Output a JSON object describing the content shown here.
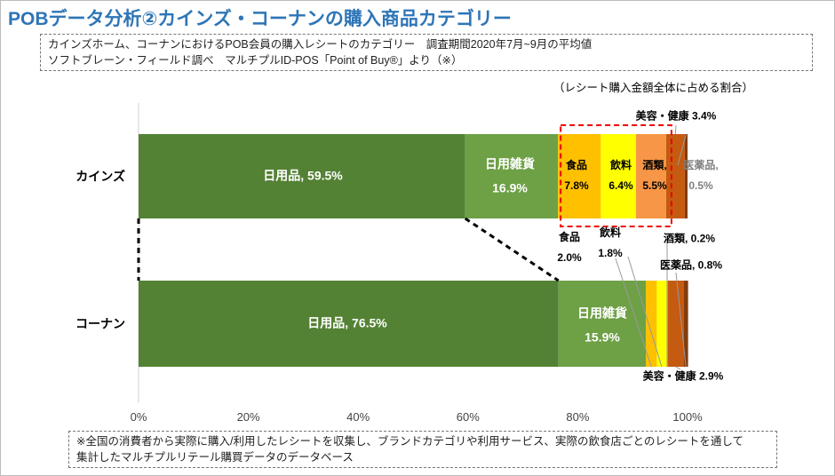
{
  "header": {
    "title": "POBデータ分析②カインズ・コーナンの購入商品カテゴリー",
    "lines": [
      "カインズホーム、コーナンにおけるPOB会員の購入レシートのカテゴリー　調査期間2020年7月~9月の平均値",
      "ソフトブレーン・フィールド調べ　マルチプルID-POS「Point of Buy®」より（※）"
    ]
  },
  "chart_data": {
    "type": "bar",
    "orientation": "horizontal",
    "stacked": true,
    "note": "（レシート購入金額全体に占める割合）",
    "categories": [
      "カインズ",
      "コーナン"
    ],
    "series": [
      {
        "color": "#548235",
        "values": [
          59.5,
          76.5
        ],
        "value_labels": [
          "日用品, 59.5%",
          "日用品, 76.5%"
        ]
      },
      {
        "color": "#6ea046",
        "values": [
          16.9,
          15.9
        ],
        "value_labels": [
          "日用雑貨\n16.9%",
          "日用雑貨\n15.9%"
        ]
      },
      {
        "color": "#ffc000",
        "values": [
          7.8,
          2.0
        ],
        "value_labels": [
          "食品\n7.8%",
          "食品\n2.0%"
        ]
      },
      {
        "color": "#ffff00",
        "values": [
          6.4,
          1.8
        ],
        "value_labels": [
          "飲料\n6.4%",
          "飲料\n1.8%"
        ]
      },
      {
        "color": "#f79646",
        "values": [
          5.5,
          0.2
        ],
        "value_labels": [
          "酒類,\n5.5%",
          "酒類, 0.2%"
        ]
      },
      {
        "color": "#c55a11",
        "values": [
          3.4,
          2.9
        ],
        "value_labels": [
          "美容・健康 3.4%",
          "美容・健康 2.9%"
        ]
      },
      {
        "color": "#843c0c",
        "values": [
          0.5,
          0.8
        ],
        "value_labels": [
          "医薬品,\n0.5%",
          "医薬品, 0.8%"
        ]
      }
    ],
    "xlim": [
      0,
      100
    ],
    "xticks": [
      {
        "value": 0,
        "label": "0%"
      },
      {
        "value": 20,
        "label": "20%"
      },
      {
        "value": 40,
        "label": "40%"
      },
      {
        "value": 60,
        "label": "60%"
      },
      {
        "value": 80,
        "label": "80%"
      },
      {
        "value": 100,
        "label": "100%"
      }
    ]
  },
  "footer": {
    "lines": [
      "※全国の消費者から実際に購入/利用したレシートを収集し、ブランドカテゴリや利用サービス、実際の飲食店ごとのレシートを通して",
      "集計したマルチプルリテール購買データのデータベース"
    ]
  }
}
